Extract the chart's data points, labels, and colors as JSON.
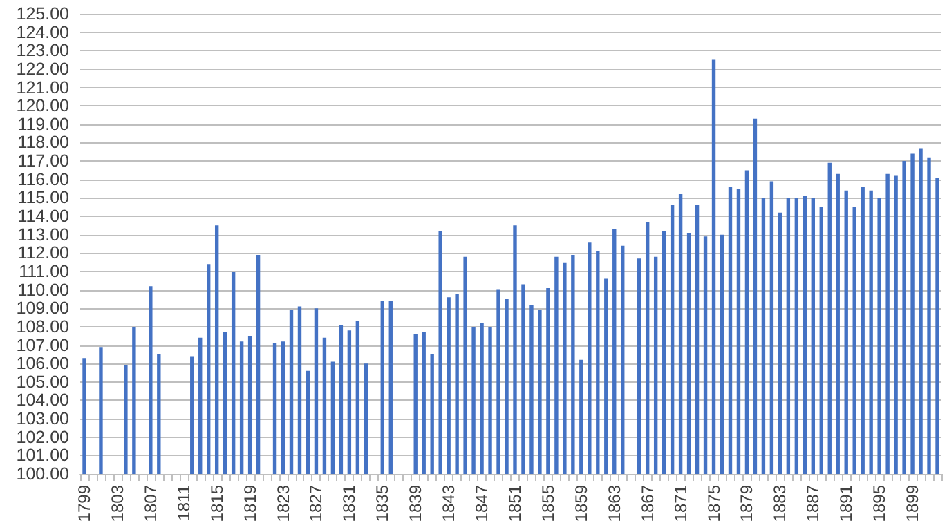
{
  "chart_data": {
    "type": "bar",
    "categories": [
      "1799",
      null,
      null,
      null,
      "1803",
      null,
      null,
      null,
      "1807",
      null,
      null,
      null,
      "1811",
      null,
      null,
      null,
      "1815",
      null,
      null,
      null,
      "1819",
      null,
      null,
      null,
      "1823",
      null,
      null,
      null,
      "1827",
      null,
      null,
      null,
      "1831",
      null,
      null,
      null,
      "1835",
      null,
      null,
      null,
      "1839",
      null,
      null,
      null,
      "1843",
      null,
      null,
      null,
      "1847",
      null,
      null,
      null,
      "1851",
      null,
      null,
      null,
      "1855",
      null,
      null,
      null,
      "1859",
      null,
      null,
      null,
      "1863",
      null,
      null,
      null,
      "1867",
      null,
      null,
      null,
      "1871",
      null,
      null,
      null,
      "1875",
      null,
      null,
      null,
      "1879",
      null,
      null,
      null,
      "1883",
      null,
      null,
      null,
      "1887",
      null,
      null,
      null,
      "1891",
      null,
      null,
      null,
      "1895",
      null,
      null,
      null,
      "1899",
      null,
      null,
      null
    ],
    "values": [
      106.3,
      null,
      106.9,
      null,
      null,
      105.9,
      108.0,
      null,
      110.2,
      106.5,
      null,
      null,
      null,
      106.4,
      107.4,
      111.4,
      113.5,
      107.7,
      111.0,
      107.2,
      107.5,
      111.9,
      null,
      107.1,
      107.2,
      108.9,
      109.1,
      105.6,
      109.0,
      107.4,
      106.1,
      108.1,
      107.8,
      108.3,
      106.0,
      null,
      109.4,
      109.4,
      null,
      null,
      107.6,
      107.7,
      106.5,
      113.2,
      109.6,
      109.8,
      111.8,
      108.0,
      108.2,
      108.0,
      110.0,
      109.5,
      113.5,
      110.3,
      109.2,
      108.9,
      110.1,
      111.8,
      111.5,
      111.9,
      106.2,
      112.6,
      112.1,
      110.6,
      113.3,
      112.4,
      null,
      111.7,
      113.7,
      111.8,
      113.2,
      114.6,
      115.2,
      113.1,
      114.6,
      112.9,
      122.5,
      113.0,
      115.6,
      115.5,
      116.5,
      119.3,
      115.0,
      115.9,
      114.2,
      115.0,
      115.0,
      115.1,
      115.0,
      114.5,
      116.9,
      116.3,
      115.4,
      114.5,
      115.6,
      115.4,
      115.0,
      116.3,
      116.2,
      117.0,
      117.4,
      117.7,
      117.2,
      116.1
    ],
    "color": "#4472c4",
    "ylim": [
      100,
      125
    ],
    "yticks": [
      {
        "value": 100,
        "label": "100.00"
      },
      {
        "value": 101,
        "label": "101.00"
      },
      {
        "value": 102,
        "label": "102.00"
      },
      {
        "value": 103,
        "label": "103.00"
      },
      {
        "value": 104,
        "label": "104.00"
      },
      {
        "value": 105,
        "label": "105.00"
      },
      {
        "value": 106,
        "label": "106.00"
      },
      {
        "value": 107,
        "label": "107.00"
      },
      {
        "value": 108,
        "label": "108.00"
      },
      {
        "value": 109,
        "label": "109.00"
      },
      {
        "value": 110,
        "label": "110.00"
      },
      {
        "value": 111,
        "label": "111.00"
      },
      {
        "value": 112,
        "label": "112.00"
      },
      {
        "value": 113,
        "label": "113.00"
      },
      {
        "value": 114,
        "label": "114.00"
      },
      {
        "value": 115,
        "label": "115.00"
      },
      {
        "value": 116,
        "label": "116.00"
      },
      {
        "value": 117,
        "label": "117.00"
      },
      {
        "value": 118,
        "label": "118.00"
      },
      {
        "value": 119,
        "label": "119.00"
      },
      {
        "value": 120,
        "label": "120.00"
      },
      {
        "value": 121,
        "label": "121.00"
      },
      {
        "value": 122,
        "label": "122.00"
      },
      {
        "value": 123,
        "label": "123.00"
      },
      {
        "value": 124,
        "label": "124.00"
      },
      {
        "value": 125,
        "label": "125.00"
      }
    ],
    "grid": "y"
  }
}
